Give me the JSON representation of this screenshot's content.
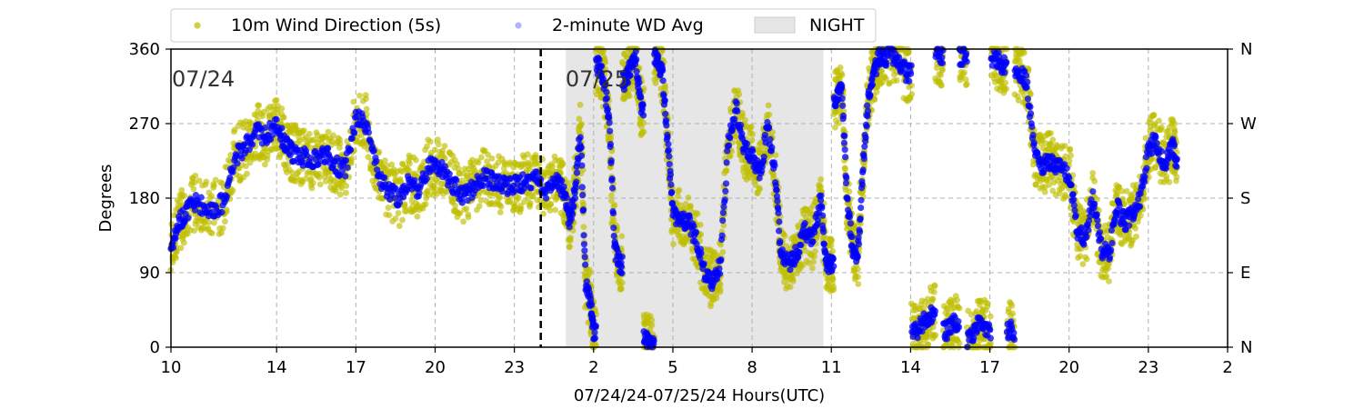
{
  "chart_data": {
    "type": "scatter",
    "xlabel": "07/24/24-07/25/24  Hours(UTC)",
    "ylabel": "Degrees",
    "x_range_hours": [
      10,
      50
    ],
    "ylim": [
      0,
      360
    ],
    "x_ticks": [
      {
        "hour": 10,
        "label": "10"
      },
      {
        "hour": 14,
        "label": "14"
      },
      {
        "hour": 17,
        "label": "17"
      },
      {
        "hour": 20,
        "label": "20"
      },
      {
        "hour": 23,
        "label": "23"
      },
      {
        "hour": 26,
        "label": "2"
      },
      {
        "hour": 29,
        "label": "5"
      },
      {
        "hour": 32,
        "label": "8"
      },
      {
        "hour": 35,
        "label": "11"
      },
      {
        "hour": 38,
        "label": "14"
      },
      {
        "hour": 41,
        "label": "17"
      },
      {
        "hour": 44,
        "label": "20"
      },
      {
        "hour": 47,
        "label": "23"
      },
      {
        "hour": 50,
        "label": "2"
      }
    ],
    "y_ticks": [
      "0",
      "90",
      "180",
      "270",
      "360"
    ],
    "y_right_ticks": [
      "N",
      "E",
      "S",
      "W",
      "N"
    ],
    "grid": true,
    "legend_position": "top",
    "legend": [
      {
        "label": "10m Wind Direction (5s)",
        "color": "#bfbf00",
        "kind": "dot"
      },
      {
        "label": "2-minute WD Avg",
        "color": "#0000ff",
        "kind": "dot"
      },
      {
        "label": "NIGHT",
        "color": "#e6e6e6",
        "kind": "patch"
      }
    ],
    "night_span_hours": [
      24.95,
      34.7
    ],
    "midnight_hour": 24,
    "date_labels": [
      {
        "text": "07/24",
        "hour": 10
      },
      {
        "text": "07/25",
        "hour": 24.9
      }
    ],
    "series": [
      {
        "name": "2-minute WD Avg",
        "color": "#0000ff",
        "points": [
          [
            10.0,
            120
          ],
          [
            10.3,
            150
          ],
          [
            10.6,
            165
          ],
          [
            11.0,
            175
          ],
          [
            11.5,
            165
          ],
          [
            12.0,
            175
          ],
          [
            12.4,
            230
          ],
          [
            12.8,
            240
          ],
          [
            13.2,
            260
          ],
          [
            13.6,
            255
          ],
          [
            14.0,
            270
          ],
          [
            14.3,
            245
          ],
          [
            14.6,
            235
          ],
          [
            15.0,
            230
          ],
          [
            15.4,
            225
          ],
          [
            15.8,
            235
          ],
          [
            16.2,
            220
          ],
          [
            16.6,
            215
          ],
          [
            17.0,
            275
          ],
          [
            17.4,
            270
          ],
          [
            17.8,
            210
          ],
          [
            18.2,
            190
          ],
          [
            18.6,
            180
          ],
          [
            19.0,
            200
          ],
          [
            19.4,
            190
          ],
          [
            19.8,
            220
          ],
          [
            20.2,
            215
          ],
          [
            20.6,
            200
          ],
          [
            21.0,
            185
          ],
          [
            21.4,
            190
          ],
          [
            21.8,
            205
          ],
          [
            22.2,
            200
          ],
          [
            22.6,
            195
          ],
          [
            23.0,
            195
          ],
          [
            23.4,
            200
          ],
          [
            23.8,
            205
          ],
          [
            24.2,
            190
          ],
          [
            24.6,
            200
          ],
          [
            24.9,
            185
          ],
          [
            25.1,
            150
          ],
          [
            25.3,
            190
          ],
          [
            25.5,
            260
          ],
          [
            25.7,
            80
          ],
          [
            25.9,
            50
          ],
          [
            26.0,
            20
          ],
          [
            26.2,
            340
          ],
          [
            26.4,
            320
          ],
          [
            26.6,
            270
          ],
          [
            26.8,
            120
          ],
          [
            27.0,
            100
          ],
          [
            27.2,
            320
          ],
          [
            27.4,
            340
          ],
          [
            27.6,
            350
          ],
          [
            27.8,
            290
          ],
          [
            28.0,
            10
          ],
          [
            28.2,
            0
          ],
          [
            28.4,
            350
          ],
          [
            28.6,
            330
          ],
          [
            28.8,
            250
          ],
          [
            29.0,
            160
          ],
          [
            29.3,
            155
          ],
          [
            29.6,
            150
          ],
          [
            29.9,
            130
          ],
          [
            30.2,
            90
          ],
          [
            30.5,
            80
          ],
          [
            30.8,
            100
          ],
          [
            31.1,
            250
          ],
          [
            31.4,
            290
          ],
          [
            31.7,
            240
          ],
          [
            32.0,
            230
          ],
          [
            32.3,
            210
          ],
          [
            32.6,
            270
          ],
          [
            32.9,
            200
          ],
          [
            33.1,
            110
          ],
          [
            33.4,
            100
          ],
          [
            33.7,
            115
          ],
          [
            34.0,
            140
          ],
          [
            34.3,
            130
          ],
          [
            34.6,
            180
          ],
          [
            34.8,
            100
          ],
          [
            35.0,
            100
          ],
          [
            35.2,
            300
          ],
          [
            35.4,
            310
          ],
          [
            35.6,
            180
          ],
          [
            35.8,
            120
          ],
          [
            36.0,
            110
          ],
          [
            36.2,
            220
          ],
          [
            36.4,
            300
          ],
          [
            36.6,
            330
          ],
          [
            36.8,
            350
          ],
          [
            37.0,
            350
          ],
          [
            37.3,
            355
          ],
          [
            37.6,
            340
          ],
          [
            37.9,
            330
          ],
          [
            38.2,
            20
          ],
          [
            38.5,
            30
          ],
          [
            38.8,
            40
          ],
          [
            39.1,
            350
          ],
          [
            39.4,
            20
          ],
          [
            39.7,
            30
          ],
          [
            40.0,
            350
          ],
          [
            40.3,
            10
          ],
          [
            40.6,
            30
          ],
          [
            40.9,
            20
          ],
          [
            41.2,
            350
          ],
          [
            41.5,
            340
          ],
          [
            41.8,
            20
          ],
          [
            42.1,
            330
          ],
          [
            42.4,
            320
          ],
          [
            42.7,
            230
          ],
          [
            43.0,
            220
          ],
          [
            43.3,
            225
          ],
          [
            43.6,
            215
          ],
          [
            44.0,
            210
          ],
          [
            44.3,
            140
          ],
          [
            44.6,
            130
          ],
          [
            44.9,
            180
          ],
          [
            45.2,
            120
          ],
          [
            45.5,
            110
          ],
          [
            45.8,
            170
          ],
          [
            46.1,
            150
          ],
          [
            46.4,
            160
          ],
          [
            46.7,
            180
          ],
          [
            47.0,
            240
          ],
          [
            47.3,
            250
          ],
          [
            47.6,
            220
          ],
          [
            47.9,
            245
          ],
          [
            48.1,
            220
          ]
        ]
      }
    ]
  }
}
